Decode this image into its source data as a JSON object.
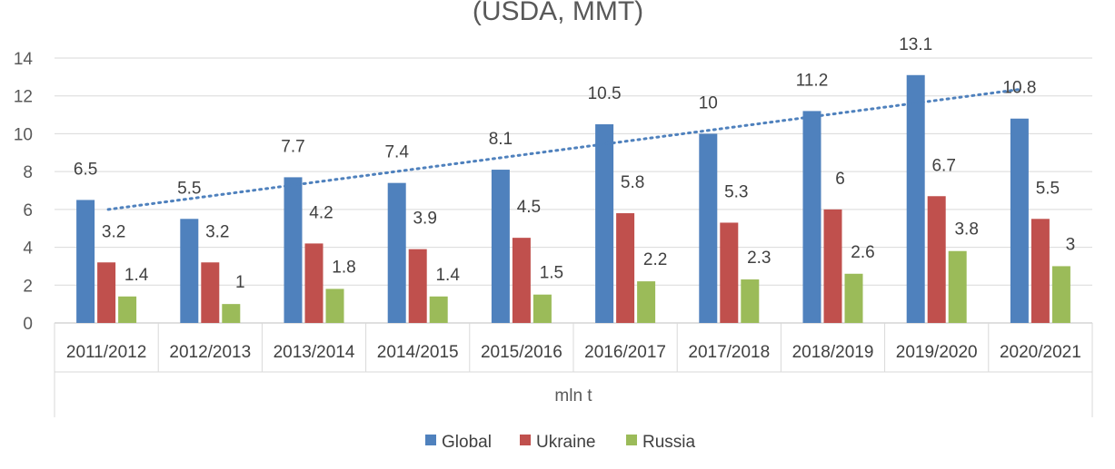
{
  "chart_data": {
    "type": "bar",
    "title": "(USDA, MMT)",
    "xlabel": "mln t",
    "ylabel": "",
    "ylim": [
      0,
      14
    ],
    "y_ticks": [
      0,
      2,
      4,
      6,
      8,
      10,
      12,
      14
    ],
    "grid": true,
    "legend_position": "bottom",
    "categories": [
      "2011/2012",
      "2012/2013",
      "2013/2014",
      "2014/2015",
      "2015/2016",
      "2016/2017",
      "2017/2018",
      "2018/2019",
      "2019/2020",
      "2020/2021"
    ],
    "series": [
      {
        "name": "Global",
        "color": "#4f81bd",
        "values": [
          6.5,
          5.5,
          7.7,
          7.4,
          8.1,
          10.5,
          10,
          11.2,
          13.1,
          10.8
        ]
      },
      {
        "name": "Ukraine",
        "color": "#c0504d",
        "values": [
          3.2,
          3.2,
          4.2,
          3.9,
          4.5,
          5.8,
          5.3,
          6,
          6.7,
          5.5
        ]
      },
      {
        "name": "Russia",
        "color": "#9bbb59",
        "values": [
          1.4,
          1,
          1.8,
          1.4,
          1.5,
          2.2,
          2.3,
          2.6,
          3.8,
          3
        ]
      }
    ],
    "trendline": {
      "series": "Global",
      "type": "linear",
      "style": "dotted",
      "color": "#4f81bd"
    }
  }
}
